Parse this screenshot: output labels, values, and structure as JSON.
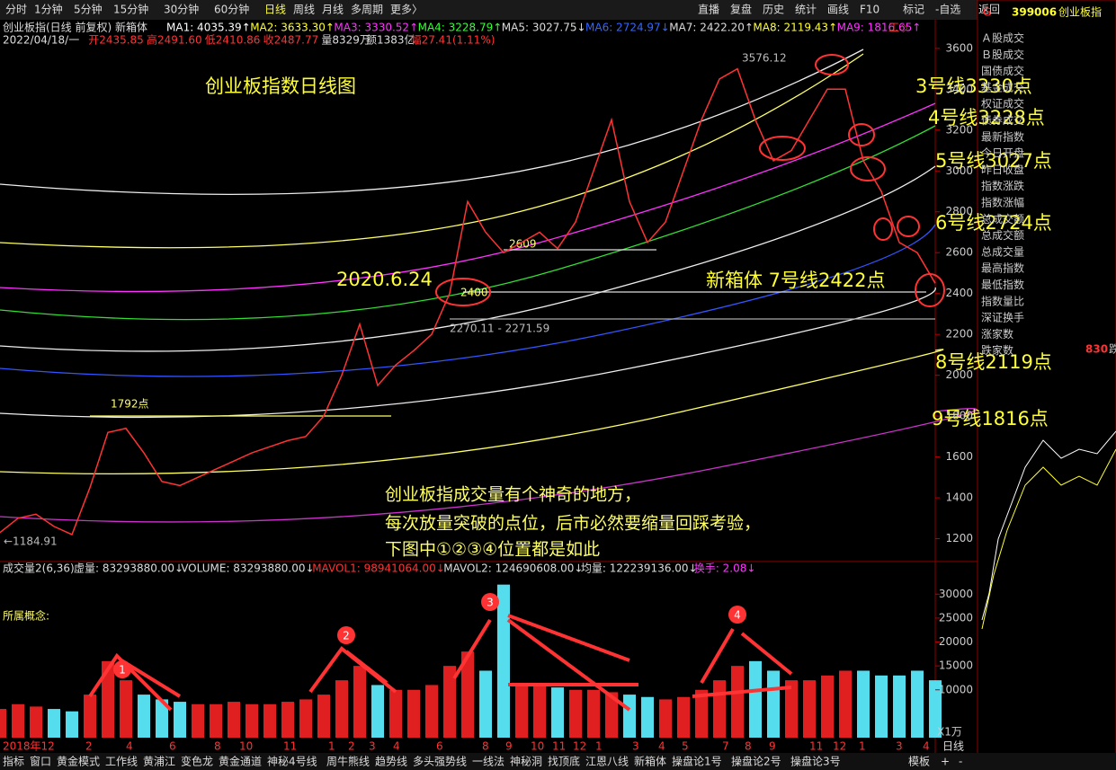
{
  "toolbar": {
    "left": [
      "分时",
      "1分钟",
      "5分钟",
      "15分钟",
      "30分钟",
      "60分钟",
      "日线",
      "周线",
      "月线",
      "多周期",
      "更多〉"
    ],
    "right": [
      "直播",
      "复盘",
      "历史",
      "统计",
      "画线",
      "F10",
      "标记",
      "-自选",
      "返回"
    ]
  },
  "info": {
    "title": "创业板指(日线 前复权)",
    "box": "新箱体",
    "ma": [
      "MA1: 4035.39↑",
      "MA2: 3633.30↑",
      "MA3: 3330.52↑",
      "MA4: 3228.79↑",
      "MA5: 3027.75↓",
      "MA6: 2724.97↓",
      "MA7: 2422.20↑",
      "MA8: 2119.43↑",
      "MA9: 1816.65↑"
    ],
    "tool": "工◇",
    "line2": "2022/04/18/一",
    "open": "开2435.85",
    "high": "高2491.60",
    "low": "低2410.86",
    "close": "收2487.77",
    "vol": "量8329万",
    "amount": "额1383亿",
    "range": "幅27.41(1.11%)"
  },
  "chart_data": [
    {
      "type": "line",
      "name": "price",
      "ylim": [
        1110,
        3740
      ],
      "yticks": [
        1200,
        1400,
        1600,
        1800,
        2000,
        2200,
        2400,
        2600,
        2800,
        3000,
        3200,
        3400,
        3600
      ],
      "values": [
        1230,
        1300,
        1320,
        1260,
        1220,
        1450,
        1720,
        1740,
        1620,
        1480,
        1460,
        1500,
        1540,
        1580,
        1620,
        1650,
        1680,
        1700,
        1800,
        2000,
        2250,
        1950,
        2050,
        2120,
        2200,
        2400,
        2850,
        2700,
        2600,
        2650,
        2700,
        2620,
        2750,
        3000,
        3250,
        2850,
        2650,
        2750,
        3000,
        3250,
        3450,
        3500,
        3250,
        3050,
        3100,
        3250,
        3400,
        3400,
        3050,
        2900,
        2650,
        2600,
        2450
      ],
      "xticks": [
        "2018年12",
        "2",
        "4",
        "6",
        "8",
        "10",
        "11",
        "1",
        "2",
        "3",
        "4",
        "6",
        "8",
        "9",
        "10",
        "11",
        "12",
        "1",
        "3",
        "4",
        "5",
        "7",
        "8",
        "9",
        "11",
        "12",
        "1",
        "3",
        "4"
      ]
    },
    {
      "type": "bar",
      "name": "volume",
      "ylim": [
        0,
        34000
      ],
      "yticks": [
        10000,
        15000,
        20000,
        25000,
        30000
      ],
      "unit": "X1万",
      "values": [
        6000,
        7000,
        6500,
        6000,
        5500,
        9000,
        16000,
        12000,
        9000,
        8000,
        7500,
        7000,
        7000,
        7500,
        7000,
        7000,
        7500,
        8000,
        9000,
        12000,
        15000,
        11000,
        10000,
        10000,
        11000,
        15000,
        18000,
        14000,
        32000,
        11000,
        11000,
        10500,
        10000,
        10000,
        9500,
        9000,
        8500,
        8000,
        8500,
        10000,
        12000,
        15000,
        16000,
        14000,
        12000,
        12000,
        13000,
        14000,
        14000,
        13000,
        13000,
        14000,
        12000
      ]
    }
  ],
  "volume_header": [
    "成交量2(6,36)",
    "虚量: 83293880.00↓",
    "VOLUME: 83293880.00↓",
    "MAVOL1: 98941064.00↓",
    "MAVOL2: 124690608.00↓",
    "均量: 122239136.00↓",
    "换手: 2.08↓"
  ],
  "concept": "所属概念:",
  "annotations": {
    "title": "创业板指数日线图",
    "l3": "3号线3330点",
    "l4": "4号线3228点",
    "l5": "5号线3027点",
    "l6": "6号线2724点",
    "l7": "新箱体 7号线2422点",
    "l8": "8号线2119点",
    "l9": "9号线1816点",
    "date": "2020.6.24",
    "note": [
      "创业板指成交量有个神奇的地方，",
      "每次放量突破的点位，后市必然要缩量回踩考验，",
      "下图中①②③④位置都是如此"
    ],
    "p2609": "2609",
    "p2400": "2400",
    "p1792": "1792点",
    "range": "2270.11 - 2271.59",
    "high": "3576.12",
    "low": "←1184.91",
    "n": [
      "1",
      "2",
      "3",
      "4"
    ]
  },
  "side": {
    "g": "G",
    "code": "399006",
    "name": "创业板指",
    "items": [
      "Ａ股成交",
      "Ｂ股成交",
      "国债成交",
      "基金成交",
      "权证成交",
      "债券成交",
      "最新指数",
      "今日开盘",
      "昨日收盘",
      "指数涨跌",
      "指数涨幅",
      "总成交额",
      "总成交额",
      "总成交量",
      "最高指数",
      "最低指数",
      "指数量比",
      "深证换手",
      "涨家数",
      "跌家数"
    ],
    "num": "830",
    "tail": "跌"
  },
  "tabs": [
    "指标",
    "窗口",
    "黄金模式",
    "工作线",
    "黄浦江",
    "变色龙",
    "黄金通道",
    "神秘4号线",
    "周牛熊线",
    "趋势线",
    "多头强势线",
    "一线法",
    "神秘洞",
    "找顶底",
    "江恩八线",
    "新箱体",
    "操盘论1号",
    "操盘论2号",
    "操盘论3号"
  ],
  "tabs_right": [
    "模板",
    "+",
    "-"
  ],
  "period": "日线"
}
